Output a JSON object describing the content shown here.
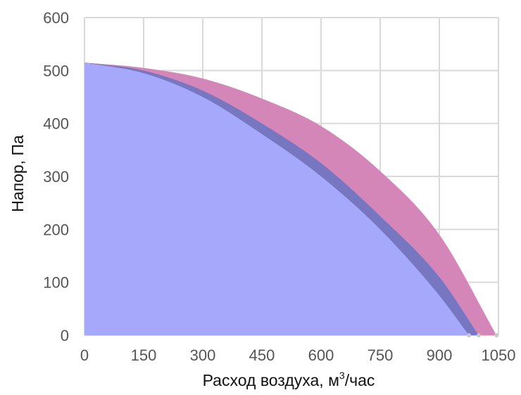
{
  "chart_data": {
    "type": "area",
    "xlabel": "Расход воздуха, м",
    "xlabel_sup": "3",
    "xlabel_suffix": "/час",
    "ylabel": "Напор, Па",
    "xlim": [
      0,
      1050
    ],
    "ylim": [
      0,
      600
    ],
    "x_ticks": [
      0,
      150,
      300,
      450,
      600,
      750,
      900,
      1050
    ],
    "y_ticks": [
      0,
      100,
      200,
      300,
      400,
      500,
      600
    ],
    "grid": true,
    "legend": "none",
    "colors": {
      "grid": "#d9d9d9",
      "tick_text": "#555555",
      "blue_area": "#a5a8fb",
      "dark_band": "#7677c0",
      "pink_band": "#d486b8",
      "axis_dot": "#c8c8c8"
    },
    "series": [
      {
        "x": [
          0,
          150,
          300,
          450,
          600,
          750,
          900,
          975
        ],
        "y": [
          515,
          495,
          450,
          380,
          300,
          200,
          75,
          0
        ]
      },
      {
        "x": [
          0,
          150,
          300,
          450,
          600,
          750,
          900,
          1000
        ],
        "y": [
          515,
          500,
          462,
          400,
          325,
          225,
          110,
          0
        ]
      },
      {
        "x": [
          0,
          150,
          300,
          450,
          600,
          750,
          900,
          1045
        ],
        "y": [
          515,
          505,
          485,
          447,
          395,
          310,
          190,
          0
        ]
      }
    ]
  }
}
